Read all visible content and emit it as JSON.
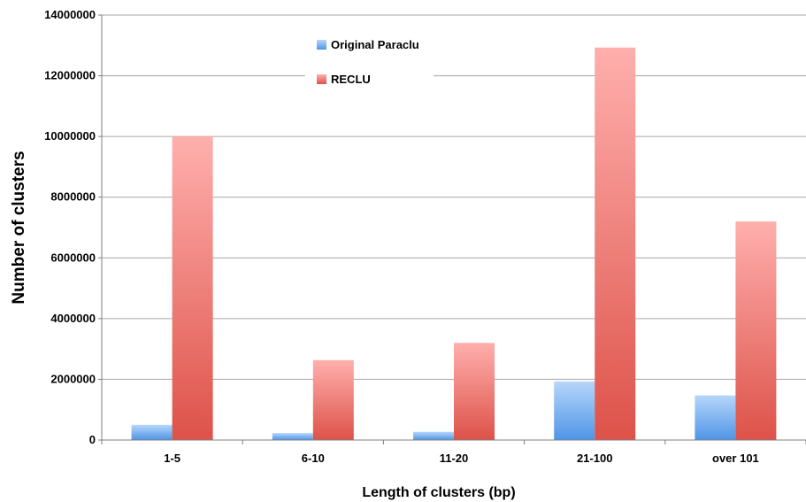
{
  "chart_data": {
    "type": "bar",
    "title": "",
    "xlabel": "Length of clusters (bp)",
    "ylabel": "Number of clusters",
    "categories": [
      "1-5",
      "6-10",
      "11-20",
      "21-100",
      "over 101"
    ],
    "series": [
      {
        "name": "Original Paraclu",
        "values": [
          500000,
          230000,
          270000,
          1930000,
          1470000
        ]
      },
      {
        "name": "RECLU",
        "values": [
          10000000,
          2630000,
          3200000,
          12930000,
          7200000
        ]
      }
    ],
    "ylim": [
      0,
      14000000
    ],
    "yticks": [
      "0",
      "2000000",
      "4000000",
      "6000000",
      "8000000",
      "10000000",
      "12000000",
      "14000000"
    ],
    "grid": true,
    "legend_position": "top-center",
    "colors": {
      "original_top": "#b6d6fb",
      "original_bottom": "#4f95e6",
      "reclu_top": "#ffafad",
      "reclu_bottom": "#dd5249",
      "grid": "#a6a6a6"
    }
  }
}
